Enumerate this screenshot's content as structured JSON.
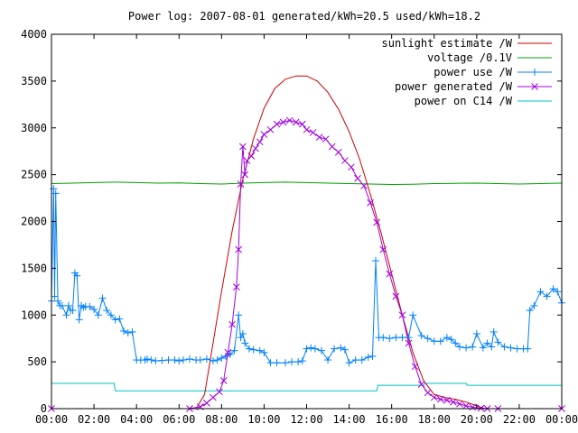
{
  "chart_data": {
    "type": "line",
    "title": "Power log: 2007-08-01 generated/kWh=20.5 used/kWh=18.2",
    "xlabel": "",
    "ylabel": "",
    "xlim": [
      0,
      24
    ],
    "ylim": [
      0,
      4000
    ],
    "grid": false,
    "legend_position": "top-right",
    "x_ticks": [
      {
        "value": 0,
        "label": "00:00"
      },
      {
        "value": 2,
        "label": "02:00"
      },
      {
        "value": 4,
        "label": "04:00"
      },
      {
        "value": 6,
        "label": "06:00"
      },
      {
        "value": 8,
        "label": "08:00"
      },
      {
        "value": 10,
        "label": "10:00"
      },
      {
        "value": 12,
        "label": "12:00"
      },
      {
        "value": 14,
        "label": "14:00"
      },
      {
        "value": 16,
        "label": "16:00"
      },
      {
        "value": 18,
        "label": "18:00"
      },
      {
        "value": 20,
        "label": "20:00"
      },
      {
        "value": 22,
        "label": "22:00"
      },
      {
        "value": 24,
        "label": "00:00"
      }
    ],
    "y_ticks": [
      {
        "value": 0,
        "label": "0"
      },
      {
        "value": 500,
        "label": "500"
      },
      {
        "value": 1000,
        "label": "1000"
      },
      {
        "value": 1500,
        "label": "1500"
      },
      {
        "value": 2000,
        "label": "2000"
      },
      {
        "value": 2500,
        "label": "2500"
      },
      {
        "value": 3000,
        "label": "3000"
      },
      {
        "value": 3500,
        "label": "3500"
      },
      {
        "value": 4000,
        "label": "4000"
      }
    ],
    "series": [
      {
        "name": "sunlight estimate /W",
        "color": "#cc0000",
        "marker": "none",
        "x": [
          0,
          6.8,
          7.2,
          7.6,
          8.0,
          8.5,
          9.0,
          9.5,
          10.0,
          10.5,
          11.0,
          11.5,
          12.0,
          12.5,
          13.0,
          13.5,
          14.0,
          14.5,
          15.0,
          15.5,
          16.0,
          16.5,
          17.0,
          17.5,
          18.0,
          18.5,
          19.0,
          19.5,
          20.0,
          20.4,
          24
        ],
        "y": [
          0,
          0,
          150,
          700,
          1250,
          1900,
          2450,
          2880,
          3210,
          3420,
          3520,
          3555,
          3555,
          3500,
          3380,
          3200,
          2960,
          2660,
          2290,
          1880,
          1440,
          1000,
          600,
          300,
          150,
          120,
          100,
          70,
          30,
          0,
          0
        ]
      },
      {
        "name": "voltage /0.1V",
        "color": "#00a000",
        "marker": "none",
        "x": [
          0,
          1,
          2,
          3,
          4,
          5,
          6,
          7,
          8,
          9,
          10,
          11,
          12,
          13,
          14,
          15,
          16,
          17,
          18,
          19,
          20,
          21,
          22,
          23,
          24
        ],
        "y": [
          2405,
          2410,
          2415,
          2420,
          2415,
          2410,
          2412,
          2405,
          2400,
          2410,
          2415,
          2420,
          2415,
          2410,
          2405,
          2400,
          2395,
          2398,
          2405,
          2408,
          2410,
          2405,
          2400,
          2405,
          2410
        ]
      },
      {
        "name": "power use /W",
        "color": "#0080ff",
        "marker": "plus",
        "x": [
          0.0,
          0.1,
          0.15,
          0.2,
          0.3,
          0.4,
          0.5,
          0.7,
          0.8,
          0.9,
          1.0,
          1.1,
          1.2,
          1.3,
          1.4,
          1.5,
          1.6,
          1.8,
          2.0,
          2.2,
          2.4,
          2.6,
          2.8,
          3.0,
          3.2,
          3.4,
          3.6,
          3.8,
          4.0,
          4.2,
          4.4,
          4.5,
          4.7,
          4.9,
          5.2,
          5.5,
          5.8,
          6.0,
          6.2,
          6.5,
          6.8,
          7.0,
          7.3,
          7.6,
          7.8,
          8.0,
          8.2,
          8.4,
          8.6,
          8.8,
          8.9,
          9.0,
          9.1,
          9.3,
          9.5,
          9.8,
          10.0,
          10.3,
          10.6,
          11.0,
          11.3,
          11.6,
          11.8,
          12.0,
          12.2,
          12.4,
          12.7,
          13.0,
          13.3,
          13.6,
          13.8,
          14.0,
          14.3,
          14.6,
          14.9,
          15.1,
          15.25,
          15.4,
          15.6,
          15.9,
          16.2,
          16.5,
          16.8,
          17.0,
          17.4,
          17.7,
          18.0,
          18.3,
          18.6,
          18.8,
          19.0,
          19.2,
          19.5,
          19.8,
          20.0,
          20.3,
          20.5,
          20.7,
          20.8,
          21.0,
          21.3,
          21.6,
          21.9,
          22.2,
          22.4,
          22.5,
          22.7,
          23.0,
          23.3,
          23.6,
          23.8,
          24.0
        ],
        "y": [
          1150,
          2350,
          1200,
          2300,
          1150,
          1100,
          1100,
          1000,
          1100,
          1050,
          1050,
          1450,
          1420,
          950,
          1100,
          1080,
          1090,
          1090,
          1060,
          1000,
          1180,
          1050,
          1000,
          950,
          960,
          830,
          810,
          820,
          520,
          520,
          520,
          530,
          520,
          510,
          515,
          520,
          520,
          510,
          520,
          530,
          520,
          520,
          530,
          510,
          520,
          540,
          560,
          580,
          620,
          1000,
          760,
          800,
          700,
          640,
          630,
          620,
          600,
          490,
          490,
          490,
          500,
          500,
          510,
          640,
          650,
          640,
          620,
          520,
          640,
          650,
          630,
          490,
          520,
          520,
          550,
          560,
          1580,
          760,
          760,
          750,
          760,
          760,
          760,
          1000,
          780,
          750,
          720,
          720,
          760,
          740,
          700,
          660,
          650,
          660,
          800,
          650,
          700,
          660,
          820,
          710,
          660,
          650,
          640,
          640,
          640,
          1050,
          1100,
          1250,
          1200,
          1280,
          1250,
          1130
        ]
      },
      {
        "name": "power generated /W",
        "color": "#a000e0",
        "marker": "cross",
        "x": [
          0,
          6.5,
          7.0,
          7.3,
          7.6,
          7.9,
          8.1,
          8.3,
          8.5,
          8.7,
          8.8,
          8.9,
          9.0,
          9.1,
          9.2,
          9.4,
          9.6,
          9.8,
          10.0,
          10.3,
          10.6,
          10.9,
          11.2,
          11.5,
          11.8,
          12.0,
          12.3,
          12.6,
          12.9,
          13.2,
          13.5,
          13.8,
          14.1,
          14.4,
          14.7,
          15.0,
          15.3,
          15.6,
          15.9,
          16.2,
          16.5,
          16.8,
          17.1,
          17.4,
          17.7,
          18.0,
          18.3,
          18.6,
          18.9,
          19.2,
          19.5,
          19.8,
          20.2,
          20.5,
          21.0,
          24
        ],
        "y": [
          0,
          0,
          20,
          60,
          120,
          180,
          300,
          600,
          900,
          1300,
          1700,
          2400,
          2800,
          2500,
          2650,
          2700,
          2780,
          2850,
          2930,
          2980,
          3040,
          3060,
          3080,
          3060,
          3040,
          2980,
          2950,
          2900,
          2880,
          2800,
          2740,
          2650,
          2580,
          2460,
          2380,
          2200,
          1990,
          1700,
          1440,
          1200,
          1000,
          700,
          450,
          260,
          170,
          120,
          100,
          90,
          70,
          50,
          30,
          15,
          5,
          0,
          0,
          0
        ]
      },
      {
        "name": "power on C14 /W",
        "color": "#00c0c0",
        "marker": "none",
        "x": [
          0,
          2.95,
          3.0,
          15.3,
          15.35,
          17.5,
          17.55,
          19.5,
          19.55,
          24
        ],
        "y": [
          270,
          270,
          190,
          190,
          250,
          250,
          270,
          270,
          250,
          250
        ]
      }
    ]
  }
}
